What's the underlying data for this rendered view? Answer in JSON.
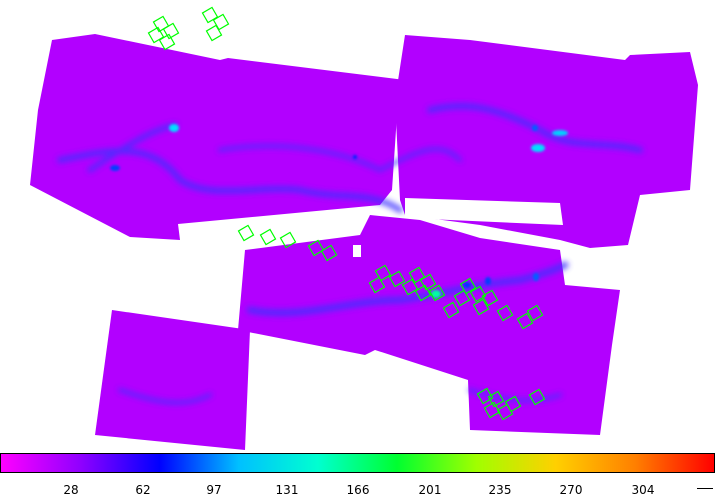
{
  "colorbar": {
    "ticks": [
      "28",
      "62",
      "97",
      "131",
      "166",
      "201",
      "235",
      "270",
      "304"
    ],
    "stops": [
      "#ff00ff",
      "#9000ff",
      "#0000ff",
      "#00c0ff",
      "#00ffd0",
      "#00ff30",
      "#a0ff00",
      "#ffd000",
      "#ff8000",
      "#ff0000"
    ]
  },
  "colors": {
    "background_map": "#b000ff",
    "structure": "#3a1aff",
    "cutout_boxes": "#00ff00"
  }
}
